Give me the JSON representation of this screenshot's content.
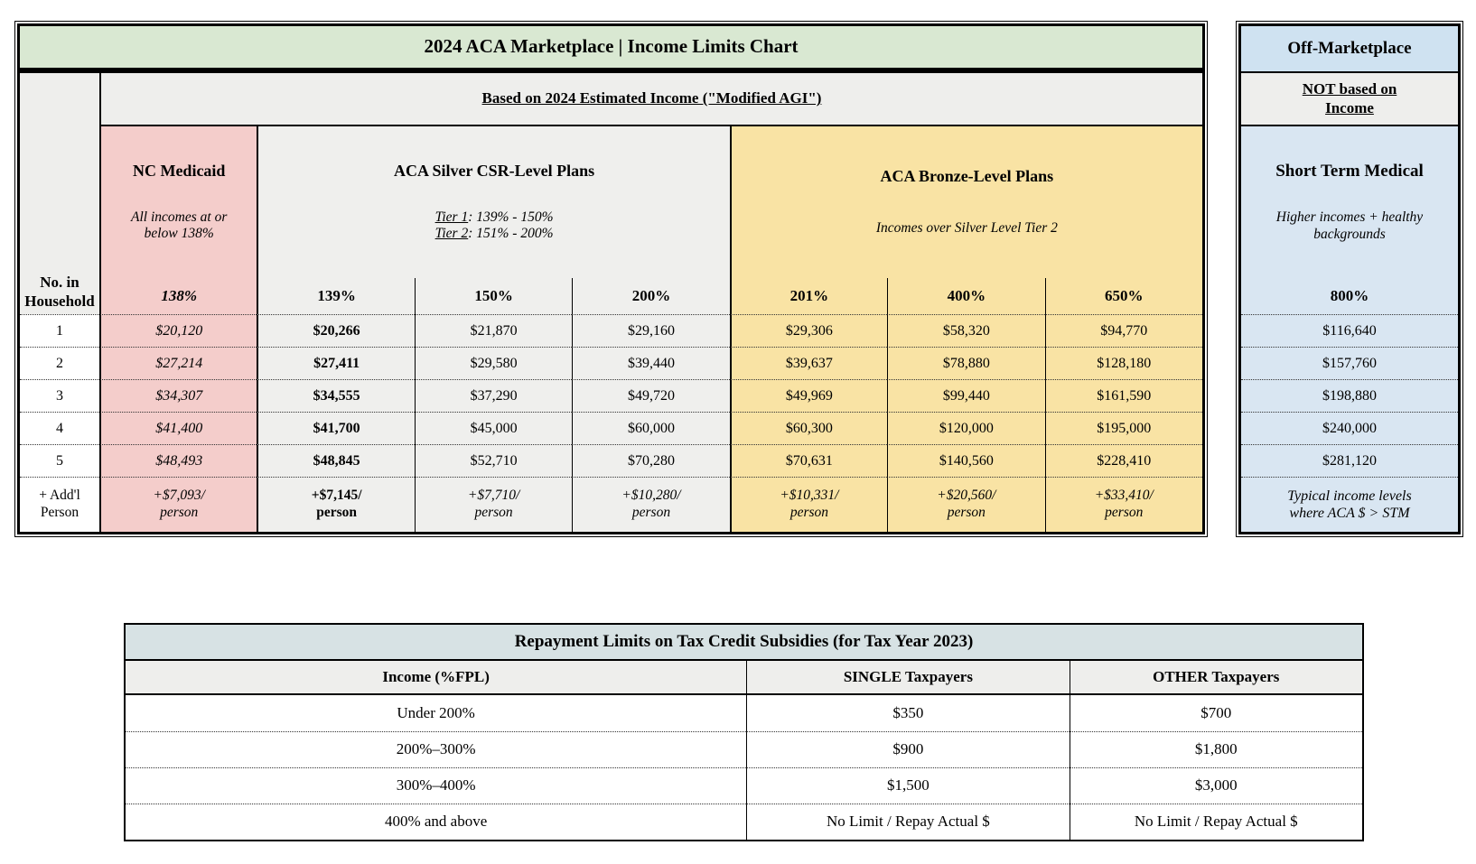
{
  "colors": {
    "title_green": "#d9e8d2",
    "medicaid_pink": "#f4cdcb",
    "silver_grey": "#efefed",
    "bronze_yellow": "#f9e3a4",
    "marketplace_blue_header": "#cfe2f1",
    "panel_blue_body": "#d9e6f2",
    "repayment_header_blue": "#d7e2e4",
    "section_grey": "#eeeeec"
  },
  "main_table": {
    "title": "2024 ACA Marketplace | Income Limits Chart",
    "subtitle": "Based on 2024 Estimated Income (\"Modified AGI\")",
    "household_header": "No. in\nHousehold",
    "medicaid": {
      "title": "NC Medicaid",
      "note": "All incomes at or\nbelow 138%",
      "percent": "138%"
    },
    "silver": {
      "title": "ACA Silver CSR-Level Plans",
      "tier1_label": "Tier 1",
      "tier1_rest": ": 139% - 150%",
      "tier2_label": "Tier 2",
      "tier2_rest": ": 151% - 200%",
      "percents": [
        "139%",
        "150%",
        "200%"
      ]
    },
    "bronze": {
      "title": "ACA Bronze-Level Plans",
      "note": "Incomes over Silver Level Tier 2",
      "percents": [
        "201%",
        "400%",
        "650%"
      ]
    },
    "rows": [
      [
        "1",
        "$20,120",
        "$20,266",
        "$21,870",
        "$29,160",
        "$29,306",
        "$58,320",
        "$94,770"
      ],
      [
        "2",
        "$27,214",
        "$27,411",
        "$29,580",
        "$39,440",
        "$39,637",
        "$78,880",
        "$128,180"
      ],
      [
        "3",
        "$34,307",
        "$34,555",
        "$37,290",
        "$49,720",
        "$49,969",
        "$99,440",
        "$161,590"
      ],
      [
        "4",
        "$41,400",
        "$41,700",
        "$45,000",
        "$60,000",
        "$60,300",
        "$120,000",
        "$195,000"
      ],
      [
        "5",
        "$48,493",
        "$48,845",
        "$52,710",
        "$70,280",
        "$70,631",
        "$140,560",
        "$228,410"
      ],
      [
        "+ Add'l\nPerson",
        "+$7,093/\nperson",
        "+$7,145/\nperson",
        "+$7,710/\nperson",
        "+$10,280/\nperson",
        "+$10,331/\nperson",
        "+$20,560/\nperson",
        "+$33,410/\nperson"
      ]
    ]
  },
  "off_marketplace": {
    "title": "Off-Marketplace",
    "subtitle": "NOT based on\nIncome",
    "heading": "Short Term Medical",
    "note": "Higher incomes + healthy\nbackgrounds",
    "percent": "800%",
    "values": [
      "$116,640",
      "$157,760",
      "$198,880",
      "$240,000",
      "$281,120"
    ],
    "footer": "Typical income levels\nwhere ACA $ > STM"
  },
  "repayment_table": {
    "title": "Repayment Limits on Tax Credit Subsidies (for Tax Year 2023)",
    "columns": [
      "Income (%FPL)",
      "SINGLE Taxpayers",
      "OTHER Taxpayers"
    ],
    "rows": [
      [
        "Under 200%",
        "$350",
        "$700"
      ],
      [
        "200%–300%",
        "$900",
        "$1,800"
      ],
      [
        "300%–400%",
        "$1,500",
        "$3,000"
      ],
      [
        "400% and above",
        "No Limit / Repay Actual $",
        "No Limit / Repay Actual $"
      ]
    ]
  }
}
